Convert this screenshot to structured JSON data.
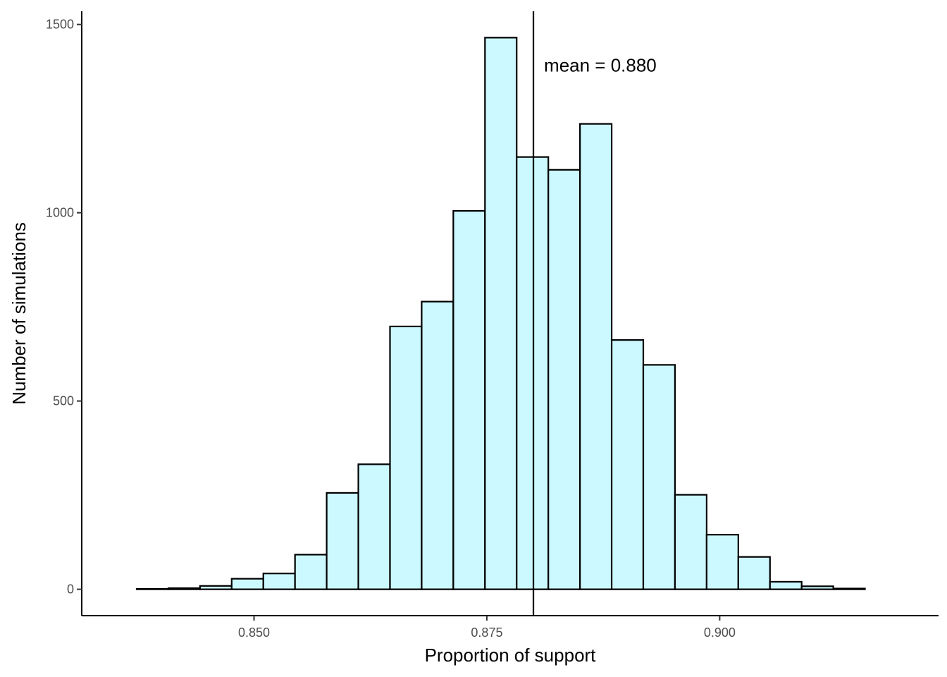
{
  "chart_data": {
    "type": "bar",
    "subtype": "histogram",
    "title": "",
    "xlabel": "Proportion of support",
    "ylabel": "Number of simulations",
    "xlim": [
      0.8315,
      0.9235
    ],
    "ylim": [
      -70,
      1535
    ],
    "x_ticks": [
      0.85,
      0.875,
      0.9
    ],
    "x_tick_labels": [
      "0.850",
      "0.875",
      "0.900"
    ],
    "y_ticks": [
      0,
      500,
      1000,
      1500
    ],
    "y_tick_labels": [
      "0",
      "500",
      "1000",
      "1500"
    ],
    "grid": false,
    "legend": "none",
    "bar_fill_color": "#ccf9ff",
    "bar_edge_color": "#000000",
    "bins": [
      {
        "x0": 0.834,
        "x1": 0.8374,
        "count": 0
      },
      {
        "x0": 0.8374,
        "x1": 0.8408,
        "count": 1
      },
      {
        "x0": 0.8408,
        "x1": 0.8442,
        "count": 3
      },
      {
        "x0": 0.8442,
        "x1": 0.8476,
        "count": 9
      },
      {
        "x0": 0.8476,
        "x1": 0.851,
        "count": 28
      },
      {
        "x0": 0.851,
        "x1": 0.8544,
        "count": 42
      },
      {
        "x0": 0.8544,
        "x1": 0.8578,
        "count": 92
      },
      {
        "x0": 0.8578,
        "x1": 0.8612,
        "count": 256
      },
      {
        "x0": 0.8612,
        "x1": 0.8646,
        "count": 332
      },
      {
        "x0": 0.8646,
        "x1": 0.868,
        "count": 698
      },
      {
        "x0": 0.868,
        "x1": 0.8714,
        "count": 764
      },
      {
        "x0": 0.8714,
        "x1": 0.8748,
        "count": 1005
      },
      {
        "x0": 0.8748,
        "x1": 0.8782,
        "count": 1465
      },
      {
        "x0": 0.8782,
        "x1": 0.8816,
        "count": 1148
      },
      {
        "x0": 0.8816,
        "x1": 0.885,
        "count": 1114
      },
      {
        "x0": 0.885,
        "x1": 0.8884,
        "count": 1236
      },
      {
        "x0": 0.8884,
        "x1": 0.8918,
        "count": 662
      },
      {
        "x0": 0.8918,
        "x1": 0.8952,
        "count": 596
      },
      {
        "x0": 0.8952,
        "x1": 0.8986,
        "count": 251
      },
      {
        "x0": 0.8986,
        "x1": 0.902,
        "count": 145
      },
      {
        "x0": 0.902,
        "x1": 0.9054,
        "count": 86
      },
      {
        "x0": 0.9054,
        "x1": 0.9088,
        "count": 20
      },
      {
        "x0": 0.9088,
        "x1": 0.9122,
        "count": 8
      },
      {
        "x0": 0.9122,
        "x1": 0.9156,
        "count": 2
      },
      {
        "x0": 0.9156,
        "x1": 0.919,
        "count": 0
      }
    ],
    "mean_line": {
      "x": 0.88,
      "label": "mean = 0.880"
    }
  }
}
